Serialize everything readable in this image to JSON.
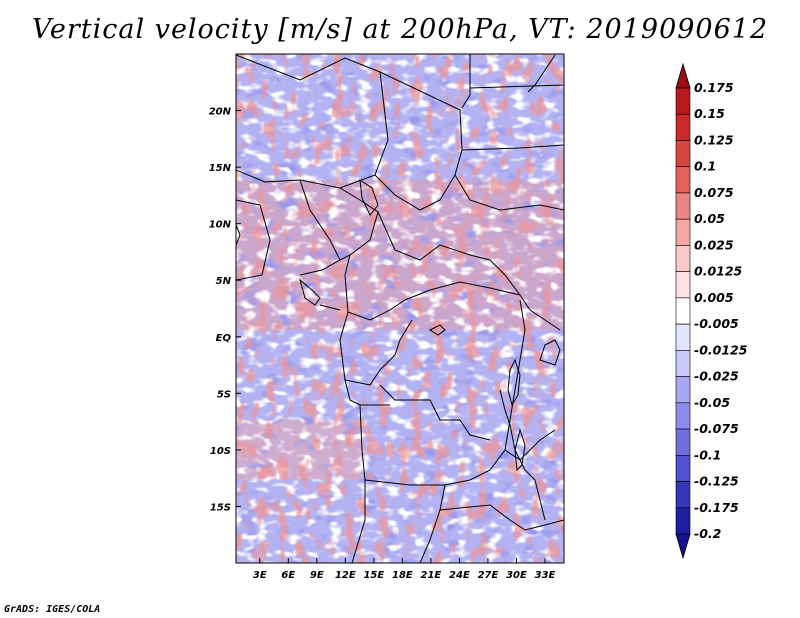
{
  "title": "Vertical velocity [m/s] at 200hPa, VT: 2019090612",
  "footer": "GrADS: IGES/COLA",
  "map": {
    "lat_labels": [
      {
        "label": "20N",
        "lat": 20
      },
      {
        "label": "15N",
        "lat": 15
      },
      {
        "label": "10N",
        "lat": 10
      },
      {
        "label": "5N",
        "lat": 5
      },
      {
        "label": "EQ",
        "lat": 0
      },
      {
        "label": "5S",
        "lat": -5
      },
      {
        "label": "10S",
        "lat": -10
      },
      {
        "label": "15S",
        "lat": -15
      }
    ],
    "lon_labels": [
      {
        "label": "3E",
        "lon": 3
      },
      {
        "label": "6E",
        "lon": 6
      },
      {
        "label": "9E",
        "lon": 9
      },
      {
        "label": "12E",
        "lon": 12
      },
      {
        "label": "15E",
        "lon": 15
      },
      {
        "label": "18E",
        "lon": 18
      },
      {
        "label": "21E",
        "lon": 21
      },
      {
        "label": "24E",
        "lon": 24
      },
      {
        "label": "27E",
        "lon": 27
      },
      {
        "label": "30E",
        "lon": 30
      },
      {
        "label": "33E",
        "lon": 33
      }
    ],
    "lon_range": [
      0.5,
      35
    ],
    "lat_range": [
      -20,
      25
    ]
  },
  "colorbar": {
    "levels": [
      {
        "label": "0.175",
        "color": "#a50f15"
      },
      {
        "label": "0.15",
        "color": "#b81a1e"
      },
      {
        "label": "0.125",
        "color": "#cb2a2a"
      },
      {
        "label": "0.1",
        "color": "#d9463f"
      },
      {
        "label": "0.075",
        "color": "#e2615a"
      },
      {
        "label": "0.05",
        "color": "#ec8682"
      },
      {
        "label": "0.025",
        "color": "#f4a8a5"
      },
      {
        "label": "0.0125",
        "color": "#f9c9c7"
      },
      {
        "label": "0.005",
        "color": "#fde4e3"
      },
      {
        "label": "-0.005",
        "color": "#ffffff"
      },
      {
        "label": "-0.0125",
        "color": "#e4e4fd"
      },
      {
        "label": "-0.025",
        "color": "#c9c9f9"
      },
      {
        "label": "-0.05",
        "color": "#a8a8f2"
      },
      {
        "label": "-0.075",
        "color": "#8c8cec"
      },
      {
        "label": "-0.1",
        "color": "#6f6fe0"
      },
      {
        "label": "-0.125",
        "color": "#5151d0"
      },
      {
        "label": "-0.175",
        "color": "#3636bd"
      },
      {
        "label": "-0.2",
        "color": "#1f1fa5"
      }
    ],
    "top_color": "#9a0d13",
    "bottom_color": "#13138f"
  },
  "colors": {
    "field_base": "#b3b3f3",
    "border_color": "#000000"
  }
}
